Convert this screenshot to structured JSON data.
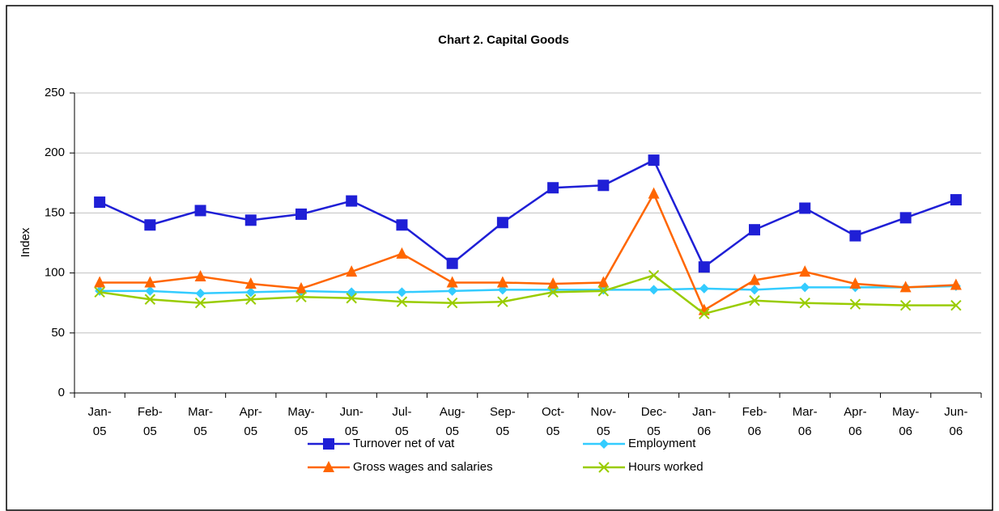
{
  "chart_data": {
    "type": "line",
    "title": "Chart 2.  Capital Goods",
    "ylabel": "Index",
    "categories": [
      "Jan-05",
      "Feb-05",
      "Mar-05",
      "Apr-05",
      "May-05",
      "Jun-05",
      "Jul-05",
      "Aug-05",
      "Sep-05",
      "Oct-05",
      "Nov-05",
      "Dec-05",
      "Jan-06",
      "Feb-06",
      "Mar-06",
      "Apr-06",
      "May-06",
      "Jun-06"
    ],
    "series": [
      {
        "name": "Turnover net of vat",
        "color": "#1f1fd6",
        "marker": "square",
        "values": [
          159,
          140,
          152,
          144,
          149,
          160,
          140,
          108,
          142,
          171,
          173,
          194,
          105,
          136,
          154,
          131,
          146,
          161
        ]
      },
      {
        "name": "Employment",
        "color": "#33ccff",
        "marker": "diamond",
        "values": [
          85,
          85,
          83,
          84,
          85,
          84,
          84,
          85,
          86,
          86,
          86,
          86,
          87,
          86,
          88,
          88,
          88,
          89
        ]
      },
      {
        "name": "Gross wages and salaries",
        "color": "#ff6600",
        "marker": "triangle",
        "values": [
          92,
          92,
          97,
          91,
          87,
          101,
          116,
          92,
          92,
          91,
          92,
          166,
          69,
          94,
          101,
          91,
          88,
          90
        ]
      },
      {
        "name": "Hours worked",
        "color": "#99cc00",
        "marker": "x",
        "values": [
          84,
          78,
          75,
          78,
          80,
          79,
          76,
          75,
          76,
          84,
          85,
          98,
          66,
          77,
          75,
          74,
          73,
          73
        ]
      }
    ],
    "ylim": [
      0,
      250
    ],
    "yticks": [
      0,
      50,
      100,
      150,
      200,
      250
    ],
    "grid": true,
    "legend": "bottom"
  }
}
